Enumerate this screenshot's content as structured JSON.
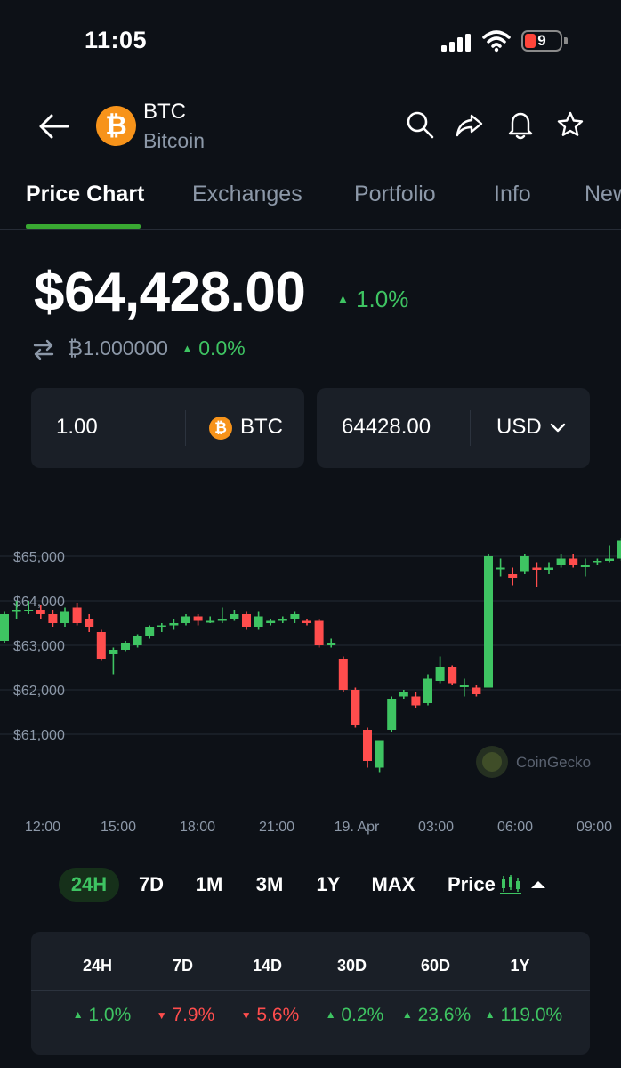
{
  "status_bar": {
    "time": "11:05",
    "battery_level": "9",
    "battery_color": "#ff453a"
  },
  "header": {
    "back_icon": "arrow-left-icon",
    "coin_symbol": "BTC",
    "coin_name": "Bitcoin",
    "coin_logo_glyph": "₿",
    "icons": [
      "search-icon",
      "share-icon",
      "bell-icon",
      "star-icon"
    ]
  },
  "tabs": [
    {
      "label": "Price Chart",
      "active": true
    },
    {
      "label": "Exchanges",
      "active": false
    },
    {
      "label": "Portfolio",
      "active": false
    },
    {
      "label": "Info",
      "active": false
    },
    {
      "label": "News",
      "active": false
    }
  ],
  "price": {
    "main": "$64,428.00",
    "change": "1.0%",
    "change_direction": "up",
    "btc_value": "₿1.000000",
    "btc_change": "0.0%"
  },
  "converter": {
    "amount": "1.00",
    "amount_unit": "BTC",
    "converted": "64428.00",
    "converted_unit": "USD"
  },
  "chart_data": {
    "type": "candlestick",
    "y_ticks": [
      "$65,000",
      "$64,000",
      "$63,000",
      "$62,000",
      "$61,000"
    ],
    "y_tick_values": [
      65000,
      64000,
      63000,
      62000,
      61000
    ],
    "x_ticks": [
      "12:00",
      "15:00",
      "18:00",
      "21:00",
      "19. Apr",
      "03:00",
      "06:00",
      "09:00"
    ],
    "ylim": [
      59300,
      66100
    ],
    "watermark": "CoinGecko",
    "up_color": "#3ec462",
    "down_color": "#ff4d4d",
    "candles": [
      [
        63100,
        63700,
        63750,
        63050
      ],
      [
        63750,
        63800,
        64000,
        63600
      ],
      [
        63800,
        63800,
        64000,
        63700
      ],
      [
        63800,
        63700,
        63900,
        63600
      ],
      [
        63700,
        63500,
        63800,
        63400
      ],
      [
        63500,
        63750,
        63850,
        63400
      ],
      [
        63850,
        63500,
        63950,
        63450
      ],
      [
        63600,
        63400,
        63700,
        63300
      ],
      [
        63300,
        62700,
        63350,
        62650
      ],
      [
        62800,
        62900,
        62950,
        62350
      ],
      [
        62900,
        63050,
        63100,
        62850
      ],
      [
        63000,
        63200,
        63250,
        62950
      ],
      [
        63200,
        63400,
        63450,
        63150
      ],
      [
        63400,
        63450,
        63500,
        63300
      ],
      [
        63450,
        63500,
        63600,
        63350
      ],
      [
        63500,
        63650,
        63700,
        63450
      ],
      [
        63650,
        63550,
        63700,
        63450
      ],
      [
        63550,
        63550,
        63650,
        63500
      ],
      [
        63550,
        63600,
        63850,
        63500
      ],
      [
        63600,
        63700,
        63800,
        63550
      ],
      [
        63700,
        63400,
        63750,
        63350
      ],
      [
        63400,
        63650,
        63750,
        63350
      ],
      [
        63500,
        63550,
        63600,
        63450
      ],
      [
        63550,
        63600,
        63650,
        63500
      ],
      [
        63600,
        63700,
        63750,
        63500
      ],
      [
        63550,
        63500,
        63600,
        63450
      ],
      [
        63550,
        63000,
        63600,
        62950
      ],
      [
        63000,
        63050,
        63150,
        62950
      ],
      [
        62700,
        62000,
        62750,
        61950
      ],
      [
        62000,
        61200,
        62050,
        61150
      ],
      [
        61100,
        60400,
        61150,
        60250
      ],
      [
        60250,
        60850,
        60850,
        60150
      ],
      [
        61100,
        61800,
        61850,
        61050
      ],
      [
        61850,
        61950,
        62000,
        61800
      ],
      [
        61850,
        61650,
        61950,
        61600
      ],
      [
        61700,
        62250,
        62350,
        61650
      ],
      [
        62200,
        62500,
        62750,
        62150
      ],
      [
        62500,
        62150,
        62550,
        62100
      ],
      [
        62100,
        62100,
        62250,
        61850
      ],
      [
        62050,
        61900,
        62100,
        61850
      ],
      [
        62050,
        65000,
        65050,
        62050
      ],
      [
        64750,
        64750,
        64950,
        64550
      ],
      [
        64600,
        64500,
        64750,
        64350
      ],
      [
        64650,
        65000,
        65050,
        64600
      ],
      [
        64750,
        64700,
        64850,
        64300
      ],
      [
        64700,
        64750,
        64850,
        64600
      ],
      [
        64800,
        64950,
        65050,
        64750
      ],
      [
        64950,
        64800,
        65050,
        64750
      ],
      [
        64800,
        64800,
        64950,
        64550
      ],
      [
        64850,
        64900,
        64950,
        64800
      ],
      [
        64900,
        64950,
        65250,
        64850
      ],
      [
        64950,
        65350,
        65400,
        64900
      ],
      [
        65350,
        64950,
        65400,
        64900
      ],
      [
        64950,
        64950,
        65050,
        64900
      ],
      [
        64950,
        64800,
        65000,
        64750
      ]
    ]
  },
  "ranges": {
    "items": [
      "24H",
      "7D",
      "1M",
      "3M",
      "1Y",
      "MAX"
    ],
    "active": "24H",
    "price_toggle": "Price"
  },
  "performance": {
    "headers": [
      "24H",
      "7D",
      "14D",
      "30D",
      "60D",
      "1Y"
    ],
    "values": [
      {
        "text": "1.0%",
        "dir": "up"
      },
      {
        "text": "7.9%",
        "dir": "down"
      },
      {
        "text": "5.6%",
        "dir": "down"
      },
      {
        "text": "0.2%",
        "dir": "up"
      },
      {
        "text": "23.6%",
        "dir": "up"
      },
      {
        "text": "119.0%",
        "dir": "up"
      }
    ]
  }
}
